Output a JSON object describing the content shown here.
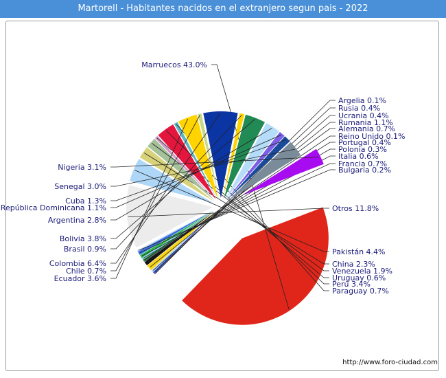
{
  "title": "Martorell - Habitantes nacidos en el extranjero segun pais - 2022",
  "footer": "http://www.foro-ciudad.com",
  "colors": {
    "title_bg": "#4a90d9",
    "label_text": "#1a1a7a"
  },
  "chart_data": {
    "type": "pie",
    "title": "Martorell - Habitantes nacidos en el extranjero segun pais - 2022",
    "unit": "%",
    "slices": [
      {
        "name": "Marruecos",
        "label": "Marruecos 43.0%",
        "value": 43.0,
        "color": "#e0261a"
      },
      {
        "name": "Argelia",
        "label": "Argelia 0.1%",
        "value": 0.1,
        "color": "#8b1d1d"
      },
      {
        "name": "Rusia",
        "label": "Rusia 0.4%",
        "value": 0.4,
        "color": "#2f57d9"
      },
      {
        "name": "Ucrania",
        "label": "Ucrania 0.4%",
        "value": 0.4,
        "color": "#aed4f6"
      },
      {
        "name": "Rumania",
        "label": "Rumania 1.1%",
        "value": 1.1,
        "color": "#f8d417"
      },
      {
        "name": "Alemania",
        "label": "Alemania 0.7%",
        "value": 0.7,
        "color": "#111111"
      },
      {
        "name": "Reino Unido",
        "label": "Reino Unido 0.1%",
        "value": 0.1,
        "color": "#7b5ea7"
      },
      {
        "name": "Portugal",
        "label": "Portugal 0.4%",
        "value": 0.4,
        "color": "#1f8a3c"
      },
      {
        "name": "Polonia",
        "label": "Polonia 0.3%",
        "value": 0.3,
        "color": "#7ec8f0"
      },
      {
        "name": "Italia",
        "label": "Italia 0.6%",
        "value": 0.6,
        "color": "#2db84d"
      },
      {
        "name": "Francia",
        "label": "Francia 0.7%",
        "value": 0.7,
        "color": "#3a6fe0"
      },
      {
        "name": "Bulgaria",
        "label": "Bulgaria 0.2%",
        "value": 0.2,
        "color": "#b1d4f5"
      },
      {
        "name": "Otros",
        "label": "Otros 11.8%",
        "value": 11.8,
        "color": "#ececec"
      },
      {
        "name": "Pakistán",
        "label": "Pakistán 4.4%",
        "value": 4.4,
        "color": "#aed6f7"
      },
      {
        "name": "China",
        "label": "China 2.3%",
        "value": 2.3,
        "color": "#d8d37a"
      },
      {
        "name": "Venezuela",
        "label": "Venezuela 1.9%",
        "value": 1.9,
        "color": "#a5c19a"
      },
      {
        "name": "Uruguay",
        "label": "Uruguay 0.6%",
        "value": 0.6,
        "color": "#cf97c8"
      },
      {
        "name": "Perú",
        "label": "Perú 3.4%",
        "value": 3.4,
        "color": "#e5163e"
      },
      {
        "name": "Paraguay",
        "label": "Paraguay 0.7%",
        "value": 0.7,
        "color": "#5ab7c1"
      },
      {
        "name": "Ecuador",
        "label": "Ecuador 3.6%",
        "value": 3.6,
        "color": "#ffd400"
      },
      {
        "name": "Chile",
        "label": "Chile 0.7%",
        "value": 0.7,
        "color": "#c7d88a"
      },
      {
        "name": "Colombia",
        "label": "Colombia 6.4%",
        "value": 6.4,
        "color": "#0a35a3"
      },
      {
        "name": "Brasil",
        "label": "Brasil 0.9%",
        "value": 0.9,
        "color": "#ffd400"
      },
      {
        "name": "Bolivia",
        "label": "Bolivia 3.8%",
        "value": 3.8,
        "color": "#218a55"
      },
      {
        "name": "Argentina",
        "label": "Argentina 2.8%",
        "value": 2.8,
        "color": "#b5dcf8"
      },
      {
        "name": "República Dominicana",
        "label": "República Dominicana 1.1%",
        "value": 1.1,
        "color": "#7b5fe6"
      },
      {
        "name": "Cuba",
        "label": "Cuba 1.3%",
        "value": 1.3,
        "color": "#1a4a9a"
      },
      {
        "name": "Senegal",
        "label": "Senegal 3.0%",
        "value": 3.0,
        "color": "#7a8c9a"
      },
      {
        "name": "Nigeria",
        "label": "Nigeria 3.1%",
        "value": 3.1,
        "color": "#a70cf0"
      }
    ]
  }
}
